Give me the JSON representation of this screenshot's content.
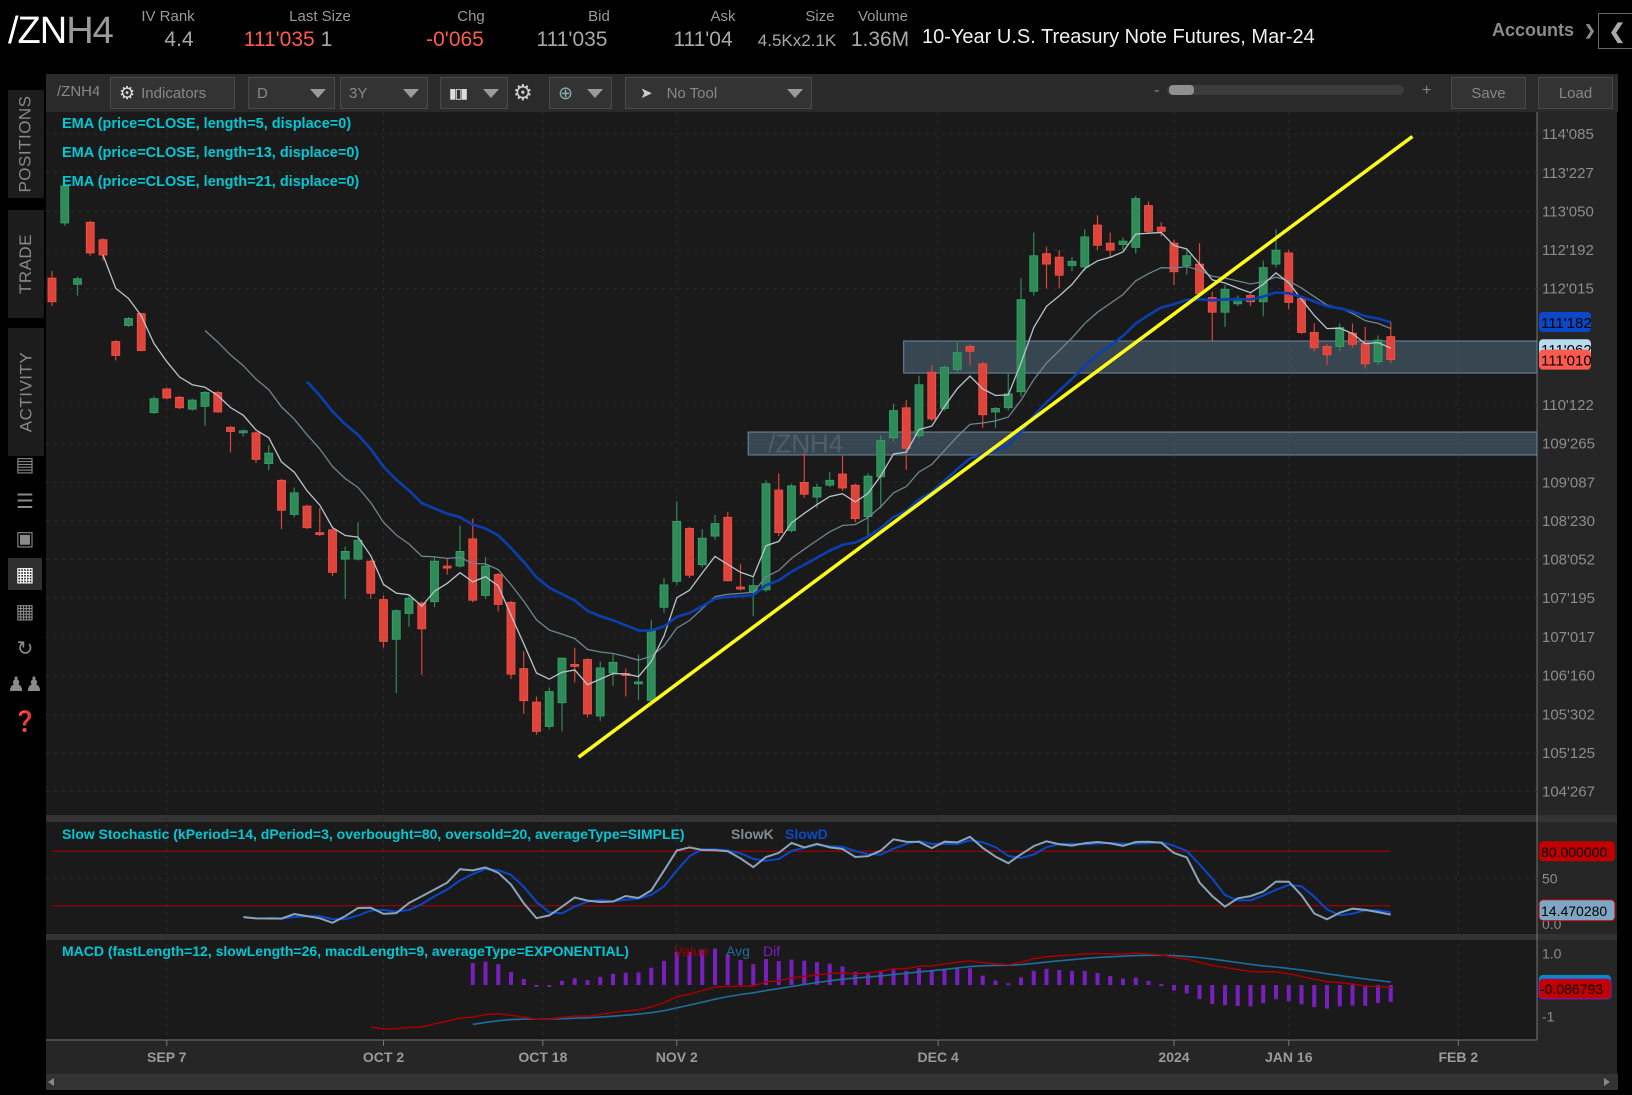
{
  "header": {
    "symbol_main": "/ZN",
    "symbol_suffix": "H4",
    "fields": [
      {
        "label": "IV Rank",
        "value": "4.4"
      },
      {
        "label": "Last Size",
        "value": "111'035",
        "extra": "1"
      },
      {
        "label": "Chg",
        "value": "-0'065"
      },
      {
        "label": "Bid",
        "value": "111'035"
      },
      {
        "label": "Ask",
        "value": "111'04"
      },
      {
        "label": "Size",
        "value": "4.5Kx2.1K"
      },
      {
        "label": "Volume",
        "value": "1.36M"
      }
    ],
    "title": "10-Year U.S. Treasury Note Futures, Mar-24",
    "accounts_label": "Accounts"
  },
  "toolbar": {
    "symbol": "/ZNH4",
    "indicators_label": "Indicators",
    "aggregation": "D",
    "timeframe": "3Y",
    "tool": "No Tool",
    "zoom_minus": "-",
    "zoom_plus": "+",
    "zoom_level": 0.1,
    "save_label": "Save",
    "load_label": "Load"
  },
  "sidebar": {
    "tabs": [
      "POSITIONS",
      "TRADE",
      "ACTIVITY"
    ],
    "icons": [
      "news-icon",
      "list-icon",
      "tv-icon",
      "chart-icon",
      "grid-icon",
      "history-icon",
      "community-icon",
      "help-icon"
    ]
  },
  "colors": {
    "up": "#2e8b57",
    "down": "#e0433a",
    "ema5": "#b8c4cc",
    "ema13": "#6f8590",
    "ema21": "#0a3fb0",
    "trendline": "#ffff1a",
    "study_label": "#00c8d4",
    "zone": "#5a7d94"
  },
  "chart_data": {
    "type": "candlestick",
    "symbol_watermark": "/ZNH4",
    "studies": {
      "ema": [
        {
          "label": "EMA (price=CLOSE, length=5, displace=0)",
          "length": 5
        },
        {
          "label": "EMA (price=CLOSE, length=13, displace=0)",
          "length": 13
        },
        {
          "label": "EMA (price=CLOSE, length=21, displace=0)",
          "length": 21
        }
      ],
      "stochastic": {
        "label": "Slow Stochastic (kPeriod=14, dPeriod=3, overbought=80, oversold=20, averageType=SIMPLE)",
        "k_label": "SlowK",
        "d_label": "SlowD",
        "overbought": 80,
        "oversold": 20,
        "ticks": [
          "50",
          "0.0"
        ],
        "badge_overbought": "80.000000",
        "badge_value": "14.470280"
      },
      "macd": {
        "label": "MACD (fastLength=12, slowLength=26, macdLength=9, averageType=EXPONENTIAL)",
        "value_label": "Value",
        "avg_label": "Avg",
        "diff_label": "Dif",
        "ticks": [
          "1.0",
          "-1"
        ],
        "badge_value": "-0.086793"
      }
    },
    "price_ticks": [
      {
        "label": "114'085",
        "value": 114.2656
      },
      {
        "label": "113'227",
        "value": 113.7094
      },
      {
        "label": "113'050",
        "value": 113.1563
      },
      {
        "label": "112'192",
        "value": 112.6
      },
      {
        "label": "112'015",
        "value": 112.0469
      },
      {
        "label": "110'122",
        "value": 110.3813
      },
      {
        "label": "109'265",
        "value": 109.8281
      },
      {
        "label": "109'087",
        "value": 109.2719
      },
      {
        "label": "108'230",
        "value": 108.7188
      },
      {
        "label": "108'052",
        "value": 108.1625
      },
      {
        "label": "107'195",
        "value": 107.6094
      },
      {
        "label": "107'017",
        "value": 107.0531
      },
      {
        "label": "106'160",
        "value": 106.5
      },
      {
        "label": "105'302",
        "value": 105.9438
      },
      {
        "label": "105'125",
        "value": 105.3906
      },
      {
        "label": "104'267",
        "value": 104.8344
      }
    ],
    "price_badges": [
      {
        "label": "111'182",
        "role": "ema21"
      },
      {
        "label": "111'062",
        "role": "ema13"
      },
      {
        "label": "111'010",
        "role": "last"
      }
    ],
    "date_labels": [
      "SEP 7",
      "OCT 2",
      "OCT 18",
      "NOV 2",
      "DEC 4",
      "2024",
      "JAN 16",
      "FEB 2"
    ],
    "zones": [
      {
        "top": 111.297,
        "bottom": 110.838
      },
      {
        "top": 109.992,
        "bottom": 109.663
      }
    ],
    "trendline": {
      "from_price": 105.33,
      "to_price": 114.23
    },
    "candles_ohlc": [
      [
        112.2,
        112.3,
        111.8,
        111.86
      ],
      [
        112.99,
        113.55,
        112.95,
        113.52
      ],
      [
        112.11,
        112.22,
        111.95,
        112.19
      ],
      [
        113.0,
        113.02,
        112.52,
        112.56
      ],
      [
        112.75,
        112.77,
        112.45,
        112.53
      ],
      [
        111.29,
        111.31,
        111.02,
        111.09
      ],
      [
        111.52,
        111.64,
        111.5,
        111.62
      ],
      [
        111.69,
        111.7,
        111.15,
        111.16
      ],
      [
        110.27,
        110.5,
        110.25,
        110.47
      ],
      [
        110.61,
        110.63,
        110.46,
        110.48
      ],
      [
        110.49,
        110.51,
        110.32,
        110.34
      ],
      [
        110.32,
        110.47,
        110.3,
        110.45
      ],
      [
        110.36,
        110.58,
        110.08,
        110.56
      ],
      [
        110.56,
        110.58,
        110.27,
        110.28
      ],
      [
        110.06,
        110.08,
        109.7,
        110.0
      ],
      [
        110.0,
        110.03,
        109.93,
        110.01
      ],
      [
        109.98,
        110.0,
        109.55,
        109.6
      ],
      [
        109.54,
        109.8,
        109.44,
        109.69
      ],
      [
        109.3,
        109.32,
        108.6,
        108.87
      ],
      [
        108.81,
        109.2,
        108.77,
        109.12
      ],
      [
        108.93,
        108.95,
        108.6,
        108.62
      ],
      [
        108.55,
        108.9,
        108.5,
        108.53
      ],
      [
        108.59,
        108.61,
        107.93,
        107.98
      ],
      [
        108.17,
        108.35,
        107.6,
        108.28
      ],
      [
        108.17,
        108.7,
        108.15,
        108.44
      ],
      [
        108.14,
        108.16,
        107.6,
        107.68
      ],
      [
        107.59,
        107.65,
        106.9,
        106.99
      ],
      [
        107.02,
        107.45,
        106.25,
        107.43
      ],
      [
        107.39,
        107.65,
        107.2,
        107.61
      ],
      [
        107.54,
        107.56,
        106.51,
        107.17
      ],
      [
        107.56,
        108.2,
        107.48,
        108.14
      ],
      [
        108.07,
        108.17,
        107.95,
        108.05
      ],
      [
        108.07,
        108.65,
        108.05,
        108.28
      ],
      [
        108.46,
        108.75,
        107.55,
        107.58
      ],
      [
        107.65,
        108.2,
        107.6,
        108.07
      ],
      [
        107.95,
        107.97,
        107.42,
        107.52
      ],
      [
        107.55,
        107.57,
        106.45,
        106.52
      ],
      [
        106.6,
        106.85,
        105.95,
        106.14
      ],
      [
        106.12,
        106.2,
        105.65,
        105.7
      ],
      [
        105.77,
        106.33,
        105.73,
        106.27
      ],
      [
        106.11,
        106.75,
        105.7,
        106.75
      ],
      [
        106.66,
        106.9,
        106.4,
        106.64
      ],
      [
        106.73,
        106.75,
        105.9,
        105.95
      ],
      [
        105.92,
        106.7,
        105.85,
        106.61
      ],
      [
        106.54,
        106.8,
        106.35,
        106.69
      ],
      [
        106.53,
        106.6,
        106.2,
        106.51
      ],
      [
        106.4,
        106.8,
        106.15,
        106.41
      ],
      [
        106.14,
        107.3,
        106.1,
        107.14
      ],
      [
        107.48,
        107.9,
        107.4,
        107.8
      ],
      [
        107.85,
        109.0,
        107.8,
        108.71
      ],
      [
        108.61,
        108.63,
        107.9,
        107.94
      ],
      [
        108.09,
        108.6,
        108.05,
        108.47
      ],
      [
        108.5,
        108.8,
        108.45,
        108.68
      ],
      [
        108.77,
        108.85,
        107.85,
        107.86
      ],
      [
        107.77,
        108.1,
        107.72,
        107.76
      ],
      [
        107.7,
        107.9,
        107.35,
        107.79
      ],
      [
        107.73,
        109.3,
        107.7,
        109.25
      ],
      [
        109.16,
        109.4,
        108.5,
        108.55
      ],
      [
        108.58,
        109.25,
        108.55,
        109.22
      ],
      [
        109.27,
        109.7,
        109.05,
        109.1
      ],
      [
        109.06,
        109.25,
        108.9,
        109.2
      ],
      [
        109.23,
        109.42,
        109.2,
        109.3
      ],
      [
        109.39,
        109.65,
        109.15,
        109.19
      ],
      [
        109.23,
        109.25,
        108.7,
        108.75
      ],
      [
        108.78,
        109.4,
        108.5,
        109.36
      ],
      [
        109.35,
        109.95,
        108.9,
        109.87
      ],
      [
        109.91,
        110.4,
        109.85,
        110.3
      ],
      [
        110.34,
        110.45,
        109.45,
        109.76
      ],
      [
        109.94,
        110.8,
        109.9,
        110.67
      ],
      [
        110.85,
        110.95,
        110.15,
        110.18
      ],
      [
        110.33,
        110.95,
        110.3,
        110.92
      ],
      [
        110.89,
        111.3,
        110.85,
        111.13
      ],
      [
        111.22,
        111.25,
        110.95,
        111.15
      ],
      [
        110.97,
        111.0,
        110.05,
        110.24
      ],
      [
        110.28,
        110.35,
        110.05,
        110.33
      ],
      [
        110.34,
        110.85,
        110.3,
        110.54
      ],
      [
        110.57,
        112.2,
        110.5,
        111.89
      ],
      [
        112.01,
        112.85,
        111.95,
        112.52
      ],
      [
        112.55,
        112.65,
        112.05,
        112.4
      ],
      [
        112.5,
        112.6,
        112.05,
        112.24
      ],
      [
        112.38,
        112.5,
        112.3,
        112.44
      ],
      [
        112.36,
        112.9,
        112.3,
        112.79
      ],
      [
        112.96,
        113.1,
        112.6,
        112.67
      ],
      [
        112.7,
        112.85,
        112.5,
        112.6
      ],
      [
        112.68,
        112.78,
        112.6,
        112.73
      ],
      [
        112.64,
        113.38,
        112.55,
        113.34
      ],
      [
        113.24,
        113.3,
        112.85,
        112.87
      ],
      [
        112.93,
        113.0,
        112.8,
        112.87
      ],
      [
        112.7,
        112.75,
        112.1,
        112.29
      ],
      [
        112.38,
        112.6,
        112.25,
        112.52
      ],
      [
        112.4,
        112.7,
        111.95,
        111.98
      ],
      [
        111.92,
        112.0,
        111.3,
        111.71
      ],
      [
        111.71,
        112.1,
        111.5,
        112.04
      ],
      [
        111.83,
        111.95,
        111.8,
        111.91
      ],
      [
        111.95,
        111.98,
        111.8,
        111.86
      ],
      [
        111.86,
        112.45,
        111.65,
        112.35
      ],
      [
        112.4,
        112.9,
        112.35,
        112.6
      ],
      [
        112.56,
        112.6,
        111.75,
        111.85
      ],
      [
        111.91,
        111.95,
        111.4,
        111.42
      ],
      [
        111.42,
        111.55,
        111.15,
        111.2
      ],
      [
        111.22,
        111.25,
        110.95,
        111.1
      ],
      [
        111.22,
        111.55,
        111.15,
        111.49
      ],
      [
        111.41,
        111.55,
        111.2,
        111.25
      ],
      [
        111.26,
        111.5,
        110.9,
        110.97
      ],
      [
        111.0,
        111.38,
        110.95,
        111.31
      ],
      [
        111.36,
        111.58,
        110.98,
        111.03
      ]
    ]
  }
}
